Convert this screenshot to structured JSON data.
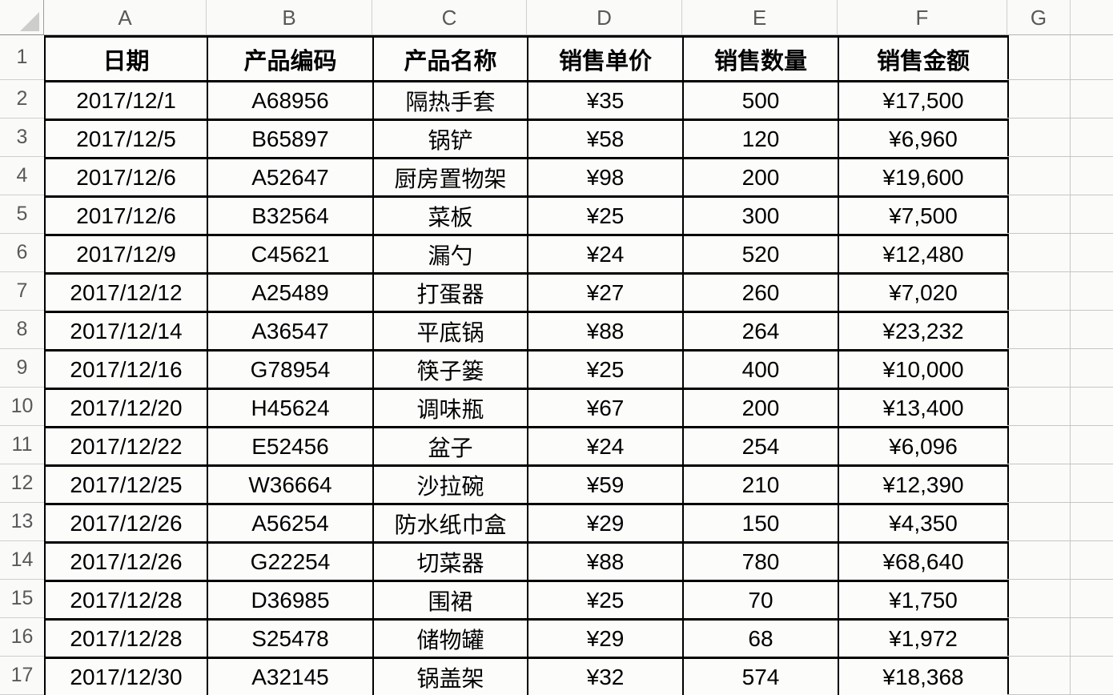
{
  "sheet": {
    "column_letters": [
      "A",
      "B",
      "C",
      "D",
      "E",
      "F",
      "G"
    ],
    "row_numbers": [
      "1",
      "2",
      "3",
      "4",
      "5",
      "6",
      "7",
      "8",
      "9",
      "10",
      "11",
      "12",
      "13",
      "14",
      "15",
      "16",
      "17"
    ],
    "header_row": [
      "日期",
      "产品编码",
      "产品名称",
      "销售单价",
      "销售数量",
      "销售金额"
    ],
    "rows": [
      [
        "2017/12/1",
        "A68956",
        "隔热手套",
        "¥35",
        "500",
        "¥17,500"
      ],
      [
        "2017/12/5",
        "B65897",
        "锅铲",
        "¥58",
        "120",
        "¥6,960"
      ],
      [
        "2017/12/6",
        "A52647",
        "厨房置物架",
        "¥98",
        "200",
        "¥19,600"
      ],
      [
        "2017/12/6",
        "B32564",
        "菜板",
        "¥25",
        "300",
        "¥7,500"
      ],
      [
        "2017/12/9",
        "C45621",
        "漏勺",
        "¥24",
        "520",
        "¥12,480"
      ],
      [
        "2017/12/12",
        "A25489",
        "打蛋器",
        "¥27",
        "260",
        "¥7,020"
      ],
      [
        "2017/12/14",
        "A36547",
        "平底锅",
        "¥88",
        "264",
        "¥23,232"
      ],
      [
        "2017/12/16",
        "G78954",
        "筷子篓",
        "¥25",
        "400",
        "¥10,000"
      ],
      [
        "2017/12/20",
        "H45624",
        "调味瓶",
        "¥67",
        "200",
        "¥13,400"
      ],
      [
        "2017/12/22",
        "E52456",
        "盆子",
        "¥24",
        "254",
        "¥6,096"
      ],
      [
        "2017/12/25",
        "W36664",
        "沙拉碗",
        "¥59",
        "210",
        "¥12,390"
      ],
      [
        "2017/12/26",
        "A56254",
        "防水纸巾盒",
        "¥29",
        "150",
        "¥4,350"
      ],
      [
        "2017/12/26",
        "G22254",
        "切菜器",
        "¥88",
        "780",
        "¥68,640"
      ],
      [
        "2017/12/28",
        "D36985",
        "围裙",
        "¥25",
        "70",
        "¥1,750"
      ],
      [
        "2017/12/28",
        "S25478",
        "储物罐",
        "¥29",
        "68",
        "¥1,972"
      ],
      [
        "2017/12/30",
        "A32145",
        "锅盖架",
        "¥32",
        "574",
        "¥18,368"
      ]
    ],
    "colors": {
      "table_border": "#000000",
      "gridline": "#c6c6c6",
      "header_label_text": "#595959",
      "cell_text": "#000000",
      "cell_background": "#fcfcfb"
    }
  }
}
